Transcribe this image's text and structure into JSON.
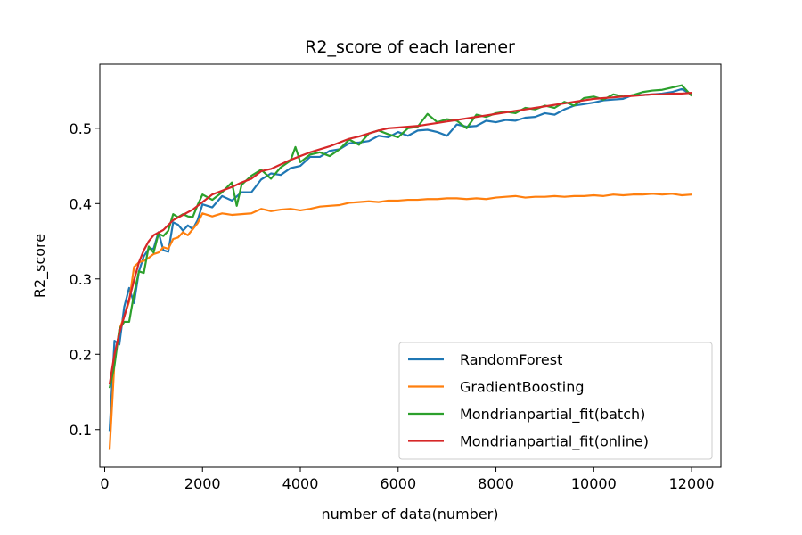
{
  "chart_data": {
    "type": "line",
    "title": "R2_score of each larener",
    "xlabel": "number of data(number)",
    "ylabel": "R2_score",
    "xlim": [
      -100,
      12600
    ],
    "ylim": [
      0.05,
      0.585
    ],
    "xticks": [
      0,
      2000,
      4000,
      6000,
      8000,
      10000,
      12000
    ],
    "yticks": [
      0.1,
      0.2,
      0.3,
      0.4,
      0.5
    ],
    "legend_position": "lower-right",
    "grid": false,
    "x": [
      100,
      1000,
      2000,
      3000,
      4000,
      5000,
      6000,
      7000,
      8000,
      9000,
      10000,
      11000,
      12000
    ],
    "series": [
      {
        "name": "RandomForest",
        "color": "#1f77b4",
        "points": [
          [
            100,
            0.098
          ],
          [
            200,
            0.218
          ],
          [
            300,
            0.213
          ],
          [
            400,
            0.263
          ],
          [
            500,
            0.288
          ],
          [
            600,
            0.268
          ],
          [
            700,
            0.31
          ],
          [
            800,
            0.33
          ],
          [
            900,
            0.34
          ],
          [
            1000,
            0.34
          ],
          [
            1100,
            0.362
          ],
          [
            1200,
            0.338
          ],
          [
            1300,
            0.336
          ],
          [
            1400,
            0.375
          ],
          [
            1500,
            0.372
          ],
          [
            1600,
            0.364
          ],
          [
            1700,
            0.371
          ],
          [
            1800,
            0.366
          ],
          [
            1900,
            0.378
          ],
          [
            2000,
            0.399
          ],
          [
            2200,
            0.395
          ],
          [
            2400,
            0.41
          ],
          [
            2600,
            0.404
          ],
          [
            2800,
            0.415
          ],
          [
            3000,
            0.415
          ],
          [
            3200,
            0.432
          ],
          [
            3400,
            0.44
          ],
          [
            3600,
            0.438
          ],
          [
            3800,
            0.447
          ],
          [
            4000,
            0.45
          ],
          [
            4200,
            0.462
          ],
          [
            4400,
            0.462
          ],
          [
            4600,
            0.47
          ],
          [
            4800,
            0.472
          ],
          [
            5000,
            0.48
          ],
          [
            5200,
            0.481
          ],
          [
            5400,
            0.483
          ],
          [
            5600,
            0.49
          ],
          [
            5800,
            0.488
          ],
          [
            6000,
            0.495
          ],
          [
            6200,
            0.49
          ],
          [
            6400,
            0.497
          ],
          [
            6600,
            0.498
          ],
          [
            6800,
            0.495
          ],
          [
            7000,
            0.49
          ],
          [
            7200,
            0.505
          ],
          [
            7400,
            0.502
          ],
          [
            7600,
            0.503
          ],
          [
            7800,
            0.51
          ],
          [
            8000,
            0.508
          ],
          [
            8200,
            0.511
          ],
          [
            8400,
            0.51
          ],
          [
            8600,
            0.514
          ],
          [
            8800,
            0.515
          ],
          [
            9000,
            0.52
          ],
          [
            9200,
            0.518
          ],
          [
            9400,
            0.525
          ],
          [
            9600,
            0.53
          ],
          [
            9800,
            0.532
          ],
          [
            10000,
            0.534
          ],
          [
            10200,
            0.537
          ],
          [
            10400,
            0.538
          ],
          [
            10600,
            0.539
          ],
          [
            10800,
            0.544
          ],
          [
            11000,
            0.544
          ],
          [
            11200,
            0.545
          ],
          [
            11400,
            0.546
          ],
          [
            11600,
            0.548
          ],
          [
            11800,
            0.552
          ],
          [
            12000,
            0.545
          ]
        ]
      },
      {
        "name": "GradientBoosting",
        "color": "#ff7f0e",
        "points": [
          [
            100,
            0.073
          ],
          [
            200,
            0.19
          ],
          [
            300,
            0.233
          ],
          [
            400,
            0.25
          ],
          [
            500,
            0.27
          ],
          [
            600,
            0.316
          ],
          [
            700,
            0.322
          ],
          [
            800,
            0.324
          ],
          [
            900,
            0.328
          ],
          [
            1000,
            0.333
          ],
          [
            1100,
            0.335
          ],
          [
            1200,
            0.342
          ],
          [
            1300,
            0.34
          ],
          [
            1400,
            0.353
          ],
          [
            1500,
            0.355
          ],
          [
            1600,
            0.362
          ],
          [
            1700,
            0.358
          ],
          [
            1800,
            0.366
          ],
          [
            1900,
            0.374
          ],
          [
            2000,
            0.387
          ],
          [
            2200,
            0.383
          ],
          [
            2400,
            0.387
          ],
          [
            2600,
            0.385
          ],
          [
            2800,
            0.386
          ],
          [
            3000,
            0.387
          ],
          [
            3200,
            0.393
          ],
          [
            3400,
            0.39
          ],
          [
            3600,
            0.392
          ],
          [
            3800,
            0.393
          ],
          [
            4000,
            0.391
          ],
          [
            4200,
            0.393
          ],
          [
            4400,
            0.396
          ],
          [
            4600,
            0.397
          ],
          [
            4800,
            0.398
          ],
          [
            5000,
            0.401
          ],
          [
            5200,
            0.402
          ],
          [
            5400,
            0.403
          ],
          [
            5600,
            0.402
          ],
          [
            5800,
            0.404
          ],
          [
            6000,
            0.404
          ],
          [
            6200,
            0.405
          ],
          [
            6400,
            0.405
          ],
          [
            6600,
            0.406
          ],
          [
            6800,
            0.406
          ],
          [
            7000,
            0.407
          ],
          [
            7200,
            0.407
          ],
          [
            7400,
            0.406
          ],
          [
            7600,
            0.407
          ],
          [
            7800,
            0.406
          ],
          [
            8000,
            0.408
          ],
          [
            8200,
            0.409
          ],
          [
            8400,
            0.41
          ],
          [
            8600,
            0.408
          ],
          [
            8800,
            0.409
          ],
          [
            9000,
            0.409
          ],
          [
            9200,
            0.41
          ],
          [
            9400,
            0.409
          ],
          [
            9600,
            0.41
          ],
          [
            9800,
            0.41
          ],
          [
            10000,
            0.411
          ],
          [
            10200,
            0.41
          ],
          [
            10400,
            0.412
          ],
          [
            10600,
            0.411
          ],
          [
            10800,
            0.412
          ],
          [
            11000,
            0.412
          ],
          [
            11200,
            0.413
          ],
          [
            11400,
            0.412
          ],
          [
            11600,
            0.413
          ],
          [
            11800,
            0.411
          ],
          [
            12000,
            0.412
          ]
        ]
      },
      {
        "name": "Mondrianpartial_fit(batch)",
        "color": "#2ca02c",
        "points": [
          [
            100,
            0.155
          ],
          [
            200,
            0.185
          ],
          [
            300,
            0.233
          ],
          [
            400,
            0.243
          ],
          [
            500,
            0.243
          ],
          [
            600,
            0.28
          ],
          [
            700,
            0.31
          ],
          [
            800,
            0.308
          ],
          [
            900,
            0.343
          ],
          [
            1000,
            0.335
          ],
          [
            1100,
            0.36
          ],
          [
            1200,
            0.357
          ],
          [
            1300,
            0.364
          ],
          [
            1400,
            0.386
          ],
          [
            1500,
            0.382
          ],
          [
            1600,
            0.386
          ],
          [
            1700,
            0.383
          ],
          [
            1800,
            0.382
          ],
          [
            1900,
            0.398
          ],
          [
            2000,
            0.412
          ],
          [
            2200,
            0.405
          ],
          [
            2400,
            0.415
          ],
          [
            2600,
            0.428
          ],
          [
            2700,
            0.397
          ],
          [
            2800,
            0.425
          ],
          [
            3000,
            0.437
          ],
          [
            3200,
            0.445
          ],
          [
            3400,
            0.433
          ],
          [
            3600,
            0.448
          ],
          [
            3800,
            0.457
          ],
          [
            3900,
            0.475
          ],
          [
            4000,
            0.455
          ],
          [
            4200,
            0.465
          ],
          [
            4400,
            0.468
          ],
          [
            4600,
            0.463
          ],
          [
            4800,
            0.472
          ],
          [
            5000,
            0.485
          ],
          [
            5200,
            0.478
          ],
          [
            5400,
            0.493
          ],
          [
            5600,
            0.497
          ],
          [
            5800,
            0.492
          ],
          [
            6000,
            0.488
          ],
          [
            6200,
            0.5
          ],
          [
            6400,
            0.502
          ],
          [
            6600,
            0.519
          ],
          [
            6800,
            0.508
          ],
          [
            7000,
            0.512
          ],
          [
            7200,
            0.51
          ],
          [
            7400,
            0.5
          ],
          [
            7600,
            0.518
          ],
          [
            7800,
            0.515
          ],
          [
            8000,
            0.52
          ],
          [
            8200,
            0.522
          ],
          [
            8400,
            0.52
          ],
          [
            8600,
            0.527
          ],
          [
            8800,
            0.525
          ],
          [
            9000,
            0.53
          ],
          [
            9200,
            0.527
          ],
          [
            9400,
            0.535
          ],
          [
            9600,
            0.53
          ],
          [
            9800,
            0.54
          ],
          [
            10000,
            0.542
          ],
          [
            10200,
            0.538
          ],
          [
            10400,
            0.545
          ],
          [
            10600,
            0.542
          ],
          [
            10800,
            0.544
          ],
          [
            11000,
            0.548
          ],
          [
            11200,
            0.55
          ],
          [
            11400,
            0.551
          ],
          [
            11600,
            0.554
          ],
          [
            11800,
            0.557
          ],
          [
            12000,
            0.543
          ]
        ]
      },
      {
        "name": "Mondrianpartial_fit(online)",
        "color": "#d62728",
        "points": [
          [
            100,
            0.16
          ],
          [
            200,
            0.2
          ],
          [
            300,
            0.228
          ],
          [
            400,
            0.25
          ],
          [
            500,
            0.273
          ],
          [
            600,
            0.298
          ],
          [
            700,
            0.322
          ],
          [
            800,
            0.338
          ],
          [
            900,
            0.35
          ],
          [
            1000,
            0.358
          ],
          [
            1200,
            0.365
          ],
          [
            1400,
            0.378
          ],
          [
            1600,
            0.385
          ],
          [
            1800,
            0.392
          ],
          [
            2000,
            0.402
          ],
          [
            2200,
            0.412
          ],
          [
            2400,
            0.417
          ],
          [
            2600,
            0.422
          ],
          [
            2800,
            0.428
          ],
          [
            3000,
            0.433
          ],
          [
            3200,
            0.443
          ],
          [
            3400,
            0.446
          ],
          [
            3600,
            0.452
          ],
          [
            3800,
            0.458
          ],
          [
            4000,
            0.463
          ],
          [
            4200,
            0.468
          ],
          [
            4400,
            0.472
          ],
          [
            4600,
            0.476
          ],
          [
            4800,
            0.481
          ],
          [
            5000,
            0.486
          ],
          [
            5200,
            0.489
          ],
          [
            5400,
            0.493
          ],
          [
            5600,
            0.497
          ],
          [
            5800,
            0.5
          ],
          [
            6000,
            0.501
          ],
          [
            6200,
            0.502
          ],
          [
            6400,
            0.503
          ],
          [
            6600,
            0.505
          ],
          [
            6800,
            0.507
          ],
          [
            7000,
            0.509
          ],
          [
            7200,
            0.511
          ],
          [
            7400,
            0.513
          ],
          [
            7600,
            0.515
          ],
          [
            7800,
            0.517
          ],
          [
            8000,
            0.519
          ],
          [
            8200,
            0.521
          ],
          [
            8400,
            0.523
          ],
          [
            8600,
            0.525
          ],
          [
            8800,
            0.527
          ],
          [
            9000,
            0.529
          ],
          [
            9200,
            0.531
          ],
          [
            9400,
            0.533
          ],
          [
            9600,
            0.535
          ],
          [
            9800,
            0.537
          ],
          [
            10000,
            0.539
          ],
          [
            10200,
            0.54
          ],
          [
            10400,
            0.541
          ],
          [
            10600,
            0.542
          ],
          [
            10800,
            0.543
          ],
          [
            11000,
            0.544
          ],
          [
            11200,
            0.545
          ],
          [
            11400,
            0.545
          ],
          [
            11600,
            0.546
          ],
          [
            11800,
            0.546
          ],
          [
            12000,
            0.547
          ]
        ]
      }
    ]
  }
}
